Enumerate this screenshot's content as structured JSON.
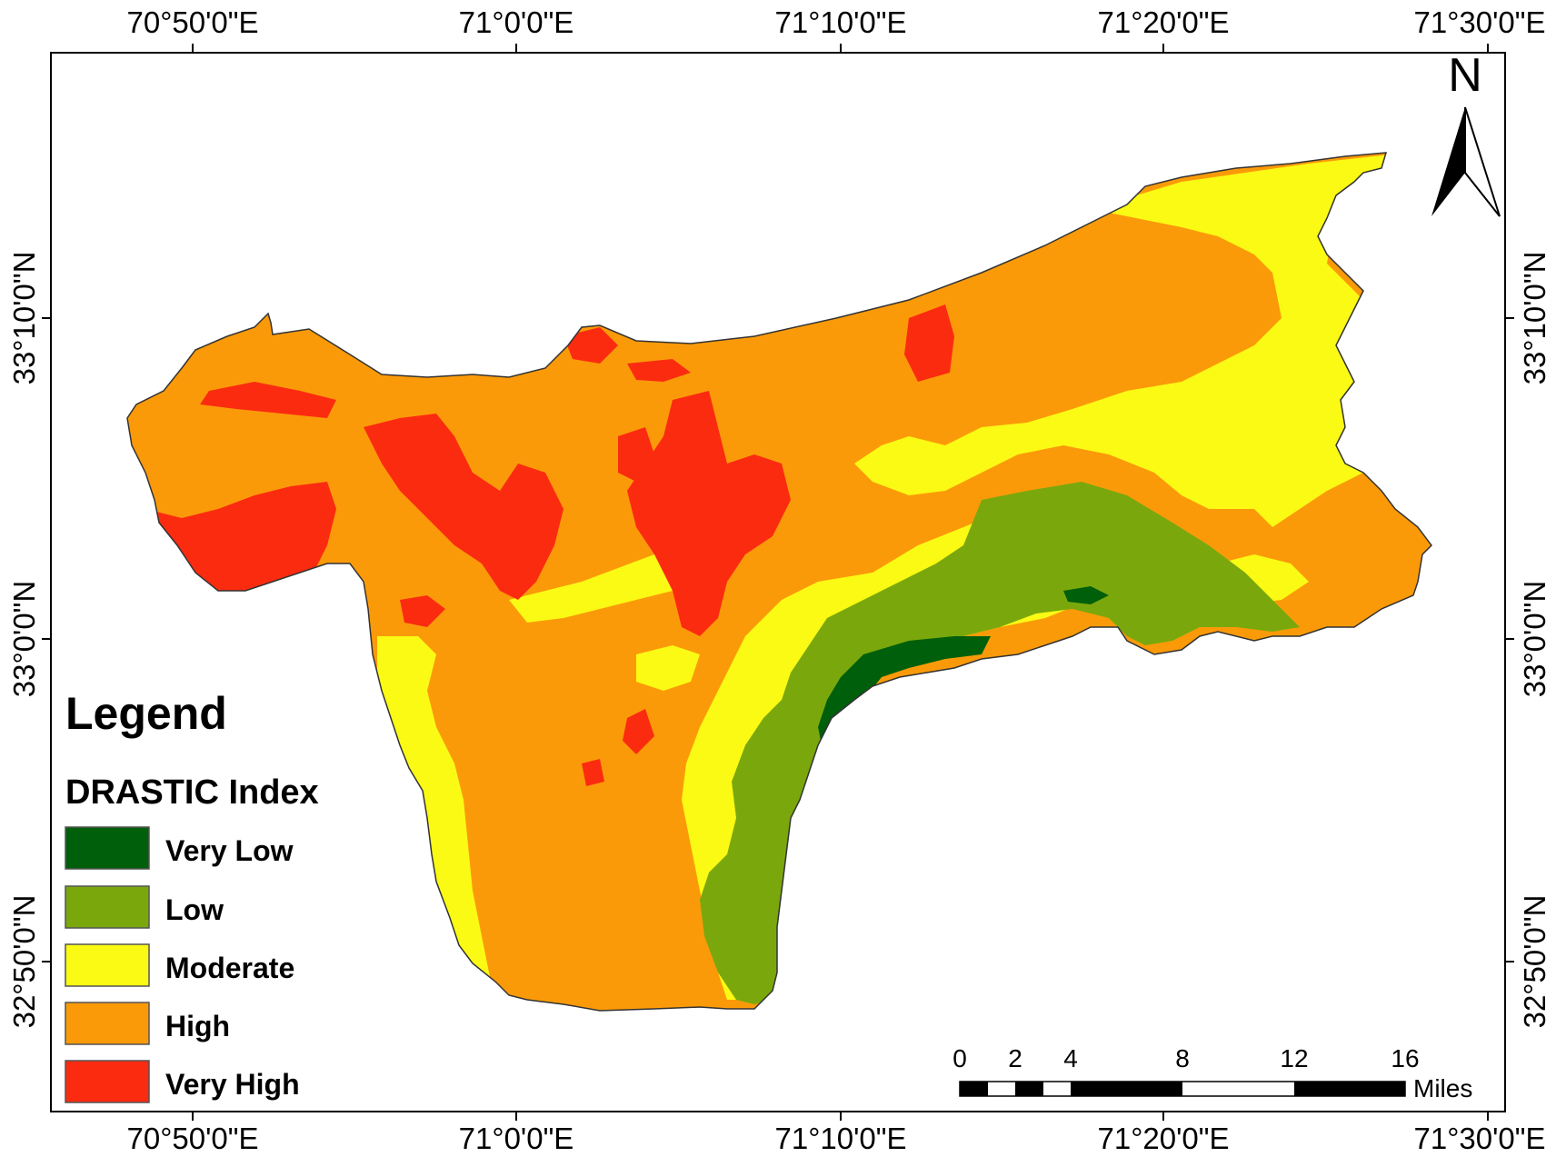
{
  "map": {
    "legend": {
      "title": "Legend",
      "subtitle": "DRASTIC Index",
      "items": [
        {
          "label": "Very Low",
          "color": "#005f0a"
        },
        {
          "label": "Low",
          "color": "#7aa80c"
        },
        {
          "label": "Moderate",
          "color": "#fbfa14"
        },
        {
          "label": "High",
          "color": "#fb9a09"
        },
        {
          "label": "Very High",
          "color": "#fb2b10"
        }
      ]
    },
    "longitude_labels": [
      "70°50'0\"E",
      "71°0'0\"E",
      "71°10'0\"E",
      "71°20'0\"E",
      "71°30'0\"E"
    ],
    "latitude_labels": [
      "33°10'0\"N",
      "33°0'0\"N",
      "32°50'0\"N"
    ],
    "north_arrow": {
      "label": "N",
      "icon": "north-arrow-icon"
    },
    "scale_bar": {
      "ticks": [
        "0",
        "2",
        "4",
        "8",
        "12",
        "16"
      ],
      "unit": "Miles"
    }
  }
}
